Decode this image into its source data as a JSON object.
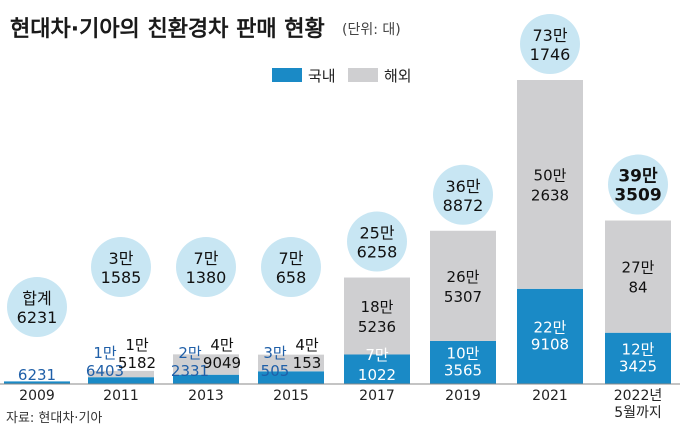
{
  "title": "현대차·기아의 친환경차 판매 현황",
  "unit": "(단위: 대)",
  "source": "자료: 현대차·기아",
  "colors": {
    "domestic": "#1a8ac6",
    "overseas": "#cfcfd1",
    "bubble": "#c8e6f3"
  },
  "chart_data": {
    "type": "bar",
    "stacked": true,
    "categories": [
      "2009",
      "2011",
      "2013",
      "2015",
      "2017",
      "2019",
      "2021",
      "2022년 5월까지"
    ],
    "category_labels": [
      [
        "2009"
      ],
      [
        "2011"
      ],
      [
        "2013"
      ],
      [
        "2015"
      ],
      [
        "2017"
      ],
      [
        "2019"
      ],
      [
        "2021"
      ],
      [
        "2022년",
        "5월까지"
      ]
    ],
    "series": [
      {
        "name": "국내",
        "values": [
          6231,
          16403,
          22331,
          30505,
          71022,
          103565,
          229108,
          123425
        ]
      },
      {
        "name": "해외",
        "values": [
          0,
          15182,
          49049,
          40153,
          185236,
          265307,
          502638,
          270084
        ]
      }
    ],
    "totals": [
      6231,
      31585,
      71380,
      70658,
      256258,
      368872,
      731746,
      393509
    ],
    "domestic_labels": [
      [
        "6231"
      ],
      [
        "1만",
        "6403"
      ],
      [
        "2만",
        "2331"
      ],
      [
        "3만",
        "505"
      ],
      [
        "7만",
        "1022"
      ],
      [
        "10만",
        "3565"
      ],
      [
        "22만",
        "9108"
      ],
      [
        "12만",
        "3425"
      ]
    ],
    "overseas_labels": [
      null,
      [
        "1만",
        "5182"
      ],
      [
        "4만",
        "9049"
      ],
      [
        "4만",
        "153"
      ],
      [
        "18만",
        "5236"
      ],
      [
        "26만",
        "5307"
      ],
      [
        "50만",
        "2638"
      ],
      [
        "27만",
        "84"
      ]
    ],
    "total_labels": [
      [
        "합계",
        "6231"
      ],
      [
        "3만",
        "1585"
      ],
      [
        "7만",
        "1380"
      ],
      [
        "7만",
        "658"
      ],
      [
        "25만",
        "6258"
      ],
      [
        "36만",
        "8872"
      ],
      [
        "73만",
        "1746"
      ],
      [
        "39만",
        "3509"
      ]
    ],
    "legend": [
      "국내",
      "해외"
    ],
    "legend_position": "top-center",
    "ylim": [
      0,
      731746
    ]
  }
}
